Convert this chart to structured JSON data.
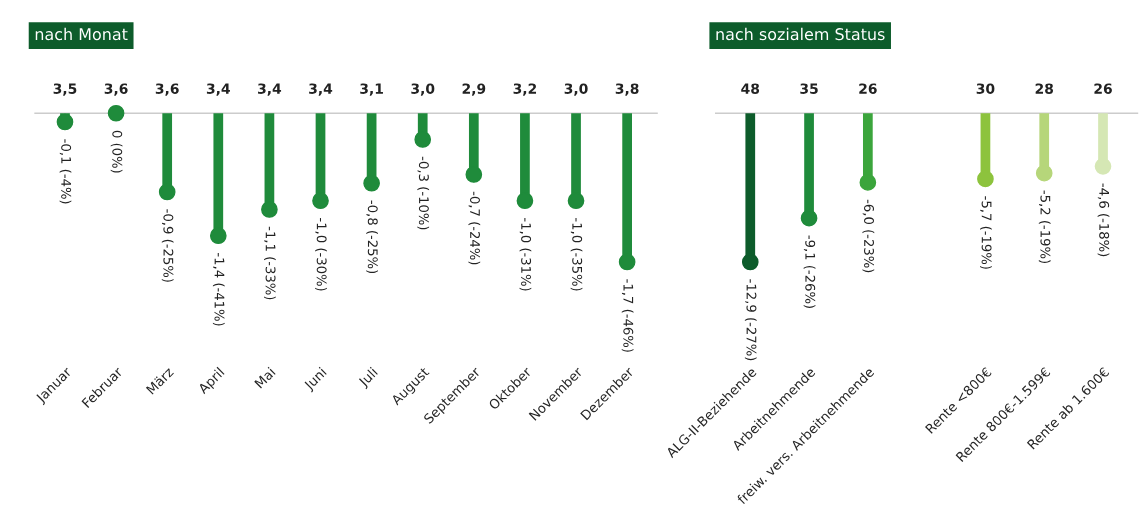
{
  "chart_data": [
    {
      "type": "lollipop",
      "title": "nach Monat",
      "categories": [
        "Januar",
        "Februar",
        "März",
        "April",
        "Mai",
        "Juni",
        "Juli",
        "August",
        "September",
        "Oktober",
        "November",
        "Dezember"
      ],
      "values": [
        -0.1,
        0,
        -0.9,
        -1.4,
        -1.1,
        -1.0,
        -0.8,
        -0.3,
        -0.7,
        -1.0,
        -1.0,
        -1.7
      ],
      "value_labels": [
        "-0,1 (-4%)",
        "0 (0%)",
        "-0,9 (-25%)",
        "-1,4 (-41%)",
        "-1,1 (-33%)",
        "-1,0 (-30%)",
        "-0,8 (-25%)",
        "-0,3 (-10%)",
        "-0,7 (-24%)",
        "-1,0 (-31%)",
        "-1,0 (-35%)",
        "-1,7 (-46%)"
      ],
      "colors": [
        "#1f8b3b",
        "#1f8b3b",
        "#1f8b3b",
        "#1f8b3b",
        "#1f8b3b",
        "#1f8b3b",
        "#1f8b3b",
        "#1f8b3b",
        "#1f8b3b",
        "#1f8b3b",
        "#1f8b3b",
        "#1f8b3b"
      ],
      "annotations": [
        "3,5",
        "3,6",
        "3,6",
        "3,4",
        "3,4",
        "3,4",
        "3,1",
        "3,0",
        "2,9",
        "3,2",
        "3,0",
        "3,8"
      ]
    },
    {
      "type": "lollipop",
      "title": "nach sozialem Status",
      "categories": [
        "ALG-II-Beziehende",
        "Arbeitnehmende",
        "freiw. vers. Arbeitnehmende",
        null,
        "Rente <800€",
        "Rente 800€-1.599€",
        "Rente ab 1.600€"
      ],
      "values": [
        -12.9,
        -9.1,
        -6.0,
        null,
        -5.7,
        -5.2,
        -4.6
      ],
      "value_labels": [
        "-12,9 (-27%)",
        "-9,1 (-26%)",
        "-6,0 (-23%)",
        null,
        "-5,7 (-19%)",
        "-5,2 (-19%)",
        "-4,6 (-18%)"
      ],
      "colors": [
        "#0d5c2b",
        "#1f8b3b",
        "#3ba53c",
        null,
        "#8dc33d",
        "#b6d67a",
        "#d5e7b4"
      ],
      "annotations": [
        "48",
        "35",
        "26",
        "30",
        "28",
        "26"
      ]
    }
  ]
}
